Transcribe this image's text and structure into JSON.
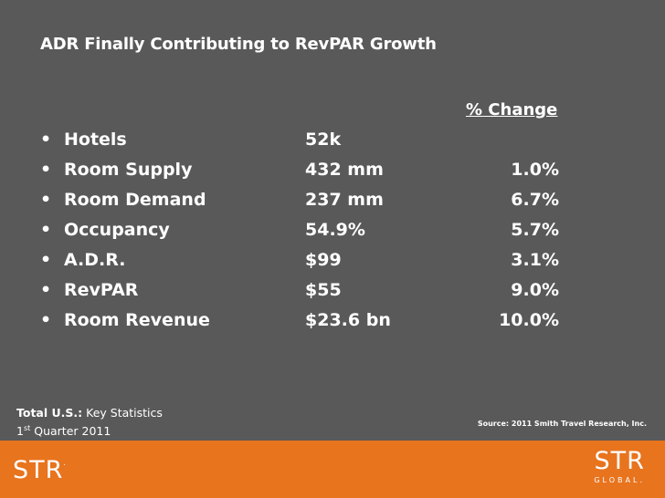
{
  "title": "ADR Finally Contributing to RevPAR Growth",
  "change_header": "% Change",
  "bullet_char": "•",
  "stats": [
    {
      "label": "Hotels",
      "value": "52k",
      "change": ""
    },
    {
      "label": "Room Supply",
      "value": "432 mm",
      "change": "1.0%"
    },
    {
      "label": "Room Demand",
      "value": "237 mm",
      "change": "6.7%"
    },
    {
      "label": "Occupancy",
      "value": "54.9%",
      "change": "5.7%"
    },
    {
      "label": "A.D.R.",
      "value": "$99",
      "change": "3.1%"
    },
    {
      "label": "RevPAR",
      "value": "$55",
      "change": "9.0%"
    },
    {
      "label": "Room Revenue",
      "value": "$23.6 bn",
      "change": "10.0%"
    }
  ],
  "footer": {
    "line1_bold": "Total U.S.:",
    "line1_rest": " Key Statistics",
    "line2_num": "1",
    "line2_sup": "st",
    "line2_rest": " Quarter 2011",
    "source": "Source: 2011 Smith Travel Research, Inc."
  },
  "logo_left": {
    "text": "STR",
    "mark": "."
  },
  "logo_right": {
    "text": "STR",
    "subtext": "GLOBAL."
  },
  "colors": {
    "background": "#595959",
    "brand_orange": "#e8741e",
    "text": "#ffffff"
  }
}
